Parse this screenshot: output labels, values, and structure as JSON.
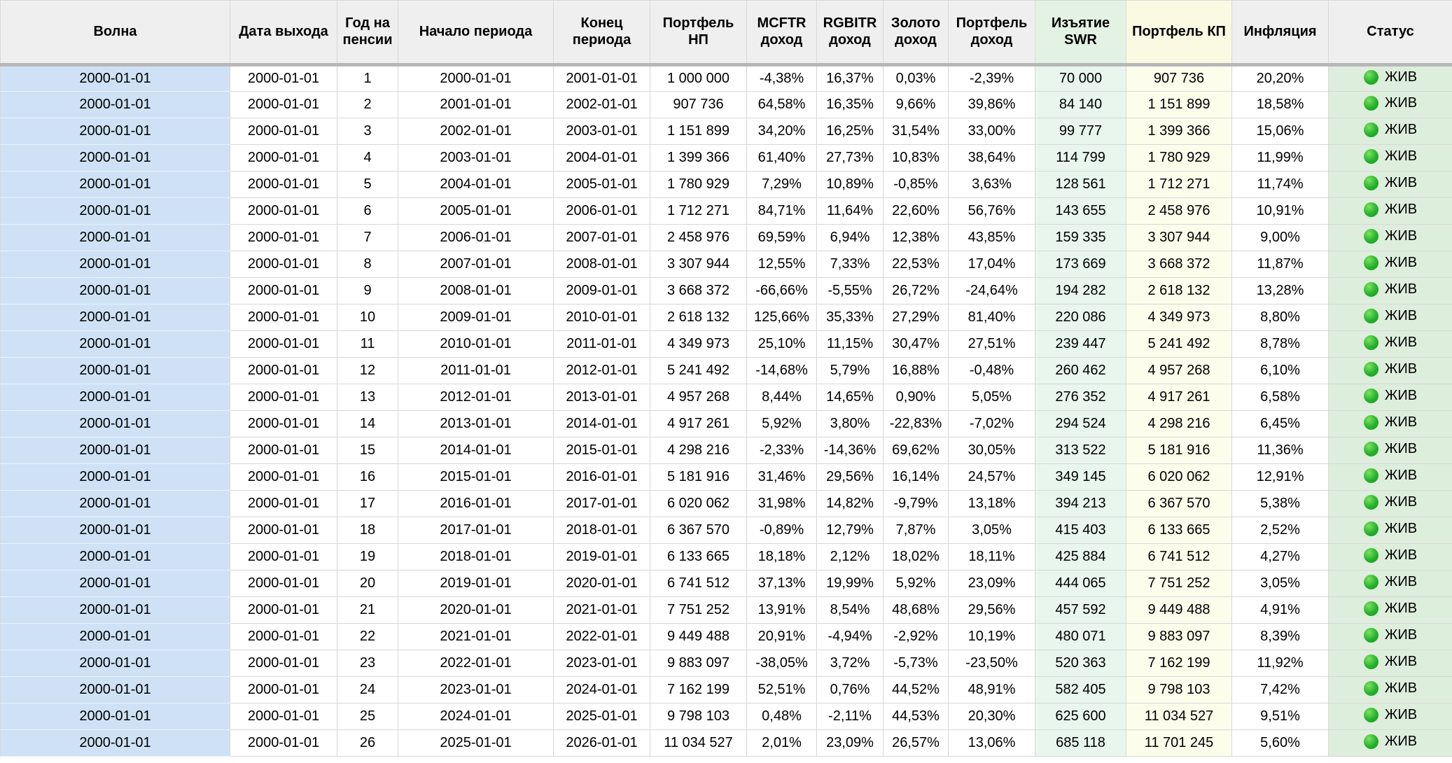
{
  "colors": {
    "header_bg": "#efefef",
    "header_divider": "#b7b7b7",
    "grid_line": "#d8d8d8",
    "wave_bg": "#cfe2f5",
    "swr_header_bg": "#e4f2e3",
    "swr_bg": "#e8f6ed",
    "kp_header_bg": "#fafae2",
    "kp_bg": "#fdfdec",
    "status_bg": "#ddeedc",
    "status_dot": "#25b12c"
  },
  "table": {
    "columns": [
      {
        "key": "wave",
        "label": "Волна"
      },
      {
        "key": "exit_date",
        "label": "Дата выхода"
      },
      {
        "key": "year",
        "label": "Год на пенсии"
      },
      {
        "key": "period_start",
        "label": "Начало периода"
      },
      {
        "key": "period_end",
        "label": "Конец периода"
      },
      {
        "key": "portfolio_np",
        "label": "Портфель НП"
      },
      {
        "key": "mcftr",
        "label": "MCFTR доход"
      },
      {
        "key": "rgbitr",
        "label": "RGBITR доход"
      },
      {
        "key": "gold",
        "label": "Золото доход"
      },
      {
        "key": "portfolio_return",
        "label": "Портфель доход"
      },
      {
        "key": "swr",
        "label": "Изъятие SWR"
      },
      {
        "key": "portfolio_kp",
        "label": "Портфель КП"
      },
      {
        "key": "inflation",
        "label": "Инфляция"
      },
      {
        "key": "status",
        "label": "Статус"
      }
    ],
    "status_value": "ЖИВ",
    "rows": [
      [
        "2000-01-01",
        "2000-01-01",
        "1",
        "2000-01-01",
        "2001-01-01",
        "1 000 000",
        "-4,38%",
        "16,37%",
        "0,03%",
        "-2,39%",
        "70 000",
        "907 736",
        "20,20%",
        "ЖИВ"
      ],
      [
        "2000-01-01",
        "2000-01-01",
        "2",
        "2001-01-01",
        "2002-01-01",
        "907 736",
        "64,58%",
        "16,35%",
        "9,66%",
        "39,86%",
        "84 140",
        "1 151 899",
        "18,58%",
        "ЖИВ"
      ],
      [
        "2000-01-01",
        "2000-01-01",
        "3",
        "2002-01-01",
        "2003-01-01",
        "1 151 899",
        "34,20%",
        "16,25%",
        "31,54%",
        "33,00%",
        "99 777",
        "1 399 366",
        "15,06%",
        "ЖИВ"
      ],
      [
        "2000-01-01",
        "2000-01-01",
        "4",
        "2003-01-01",
        "2004-01-01",
        "1 399 366",
        "61,40%",
        "27,73%",
        "10,83%",
        "38,64%",
        "114 799",
        "1 780 929",
        "11,99%",
        "ЖИВ"
      ],
      [
        "2000-01-01",
        "2000-01-01",
        "5",
        "2004-01-01",
        "2005-01-01",
        "1 780 929",
        "7,29%",
        "10,89%",
        "-0,85%",
        "3,63%",
        "128 561",
        "1 712 271",
        "11,74%",
        "ЖИВ"
      ],
      [
        "2000-01-01",
        "2000-01-01",
        "6",
        "2005-01-01",
        "2006-01-01",
        "1 712 271",
        "84,71%",
        "11,64%",
        "22,60%",
        "56,76%",
        "143 655",
        "2 458 976",
        "10,91%",
        "ЖИВ"
      ],
      [
        "2000-01-01",
        "2000-01-01",
        "7",
        "2006-01-01",
        "2007-01-01",
        "2 458 976",
        "69,59%",
        "6,94%",
        "12,38%",
        "43,85%",
        "159 335",
        "3 307 944",
        "9,00%",
        "ЖИВ"
      ],
      [
        "2000-01-01",
        "2000-01-01",
        "8",
        "2007-01-01",
        "2008-01-01",
        "3 307 944",
        "12,55%",
        "7,33%",
        "22,53%",
        "17,04%",
        "173 669",
        "3 668 372",
        "11,87%",
        "ЖИВ"
      ],
      [
        "2000-01-01",
        "2000-01-01",
        "9",
        "2008-01-01",
        "2009-01-01",
        "3 668 372",
        "-66,66%",
        "-5,55%",
        "26,72%",
        "-24,64%",
        "194 282",
        "2 618 132",
        "13,28%",
        "ЖИВ"
      ],
      [
        "2000-01-01",
        "2000-01-01",
        "10",
        "2009-01-01",
        "2010-01-01",
        "2 618 132",
        "125,66%",
        "35,33%",
        "27,29%",
        "81,40%",
        "220 086",
        "4 349 973",
        "8,80%",
        "ЖИВ"
      ],
      [
        "2000-01-01",
        "2000-01-01",
        "11",
        "2010-01-01",
        "2011-01-01",
        "4 349 973",
        "25,10%",
        "11,15%",
        "30,47%",
        "27,51%",
        "239 447",
        "5 241 492",
        "8,78%",
        "ЖИВ"
      ],
      [
        "2000-01-01",
        "2000-01-01",
        "12",
        "2011-01-01",
        "2012-01-01",
        "5 241 492",
        "-14,68%",
        "5,79%",
        "16,88%",
        "-0,48%",
        "260 462",
        "4 957 268",
        "6,10%",
        "ЖИВ"
      ],
      [
        "2000-01-01",
        "2000-01-01",
        "13",
        "2012-01-01",
        "2013-01-01",
        "4 957 268",
        "8,44%",
        "14,65%",
        "0,90%",
        "5,05%",
        "276 352",
        "4 917 261",
        "6,58%",
        "ЖИВ"
      ],
      [
        "2000-01-01",
        "2000-01-01",
        "14",
        "2013-01-01",
        "2014-01-01",
        "4 917 261",
        "5,92%",
        "3,80%",
        "-22,83%",
        "-7,02%",
        "294 524",
        "4 298 216",
        "6,45%",
        "ЖИВ"
      ],
      [
        "2000-01-01",
        "2000-01-01",
        "15",
        "2014-01-01",
        "2015-01-01",
        "4 298 216",
        "-2,33%",
        "-14,36%",
        "69,62%",
        "30,05%",
        "313 522",
        "5 181 916",
        "11,36%",
        "ЖИВ"
      ],
      [
        "2000-01-01",
        "2000-01-01",
        "16",
        "2015-01-01",
        "2016-01-01",
        "5 181 916",
        "31,46%",
        "29,56%",
        "16,14%",
        "24,57%",
        "349 145",
        "6 020 062",
        "12,91%",
        "ЖИВ"
      ],
      [
        "2000-01-01",
        "2000-01-01",
        "17",
        "2016-01-01",
        "2017-01-01",
        "6 020 062",
        "31,98%",
        "14,82%",
        "-9,79%",
        "13,18%",
        "394 213",
        "6 367 570",
        "5,38%",
        "ЖИВ"
      ],
      [
        "2000-01-01",
        "2000-01-01",
        "18",
        "2017-01-01",
        "2018-01-01",
        "6 367 570",
        "-0,89%",
        "12,79%",
        "7,87%",
        "3,05%",
        "415 403",
        "6 133 665",
        "2,52%",
        "ЖИВ"
      ],
      [
        "2000-01-01",
        "2000-01-01",
        "19",
        "2018-01-01",
        "2019-01-01",
        "6 133 665",
        "18,18%",
        "2,12%",
        "18,02%",
        "18,11%",
        "425 884",
        "6 741 512",
        "4,27%",
        "ЖИВ"
      ],
      [
        "2000-01-01",
        "2000-01-01",
        "20",
        "2019-01-01",
        "2020-01-01",
        "6 741 512",
        "37,13%",
        "19,99%",
        "5,92%",
        "23,09%",
        "444 065",
        "7 751 252",
        "3,05%",
        "ЖИВ"
      ],
      [
        "2000-01-01",
        "2000-01-01",
        "21",
        "2020-01-01",
        "2021-01-01",
        "7 751 252",
        "13,91%",
        "8,54%",
        "48,68%",
        "29,56%",
        "457 592",
        "9 449 488",
        "4,91%",
        "ЖИВ"
      ],
      [
        "2000-01-01",
        "2000-01-01",
        "22",
        "2021-01-01",
        "2022-01-01",
        "9 449 488",
        "20,91%",
        "-4,94%",
        "-2,92%",
        "10,19%",
        "480 071",
        "9 883 097",
        "8,39%",
        "ЖИВ"
      ],
      [
        "2000-01-01",
        "2000-01-01",
        "23",
        "2022-01-01",
        "2023-01-01",
        "9 883 097",
        "-38,05%",
        "3,72%",
        "-5,73%",
        "-23,50%",
        "520 363",
        "7 162 199",
        "11,92%",
        "ЖИВ"
      ],
      [
        "2000-01-01",
        "2000-01-01",
        "24",
        "2023-01-01",
        "2024-01-01",
        "7 162 199",
        "52,51%",
        "0,76%",
        "44,52%",
        "48,91%",
        "582 405",
        "9 798 103",
        "7,42%",
        "ЖИВ"
      ],
      [
        "2000-01-01",
        "2000-01-01",
        "25",
        "2024-01-01",
        "2025-01-01",
        "9 798 103",
        "0,48%",
        "-2,11%",
        "44,53%",
        "20,30%",
        "625 600",
        "11 034 527",
        "9,51%",
        "ЖИВ"
      ],
      [
        "2000-01-01",
        "2000-01-01",
        "26",
        "2025-01-01",
        "2026-01-01",
        "11 034 527",
        "2,01%",
        "23,09%",
        "26,57%",
        "13,06%",
        "685 118",
        "11 701 245",
        "5,60%",
        "ЖИВ"
      ]
    ]
  }
}
